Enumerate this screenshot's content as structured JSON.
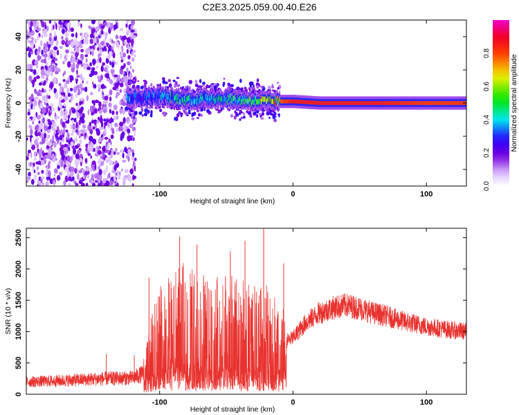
{
  "title": "C2E3.2025.059.00.40.E26",
  "chart_data": [
    {
      "type": "heatmap",
      "xlabel": "Height of straight line (km)",
      "ylabel": "Frequency (Hz)",
      "xlim": [
        -200,
        130
      ],
      "ylim": [
        -50,
        50
      ],
      "xticks": [
        -100,
        0,
        100
      ],
      "yticks": [
        -40,
        -20,
        0,
        20,
        40
      ],
      "colorbar": {
        "label": "Normalized spectral amplitude",
        "range": [
          0,
          1
        ],
        "ticks": [
          "0.0",
          "0.2",
          "0.4",
          "0.6",
          "0.8"
        ],
        "colormap": "rainbow (white→violet→blue→cyan→green→yellow→red→magenta)"
      },
      "ridge": {
        "description": "Spectral ridge near 0 Hz",
        "points": [
          {
            "x": -140,
            "y": 5,
            "amp": 0.45
          },
          {
            "x": -115,
            "y": 3,
            "amp": 0.3
          },
          {
            "x": -100,
            "y": 4,
            "amp": 0.4
          },
          {
            "x": -80,
            "y": 2,
            "amp": 0.45
          },
          {
            "x": -60,
            "y": 3,
            "amp": 0.45
          },
          {
            "x": -40,
            "y": 2,
            "amp": 0.5
          },
          {
            "x": -20,
            "y": 1,
            "amp": 0.7
          },
          {
            "x": 0,
            "y": 1,
            "amp": 0.85
          },
          {
            "x": 20,
            "y": 0,
            "amp": 0.85
          },
          {
            "x": 60,
            "y": 0,
            "amp": 0.85
          },
          {
            "x": 100,
            "y": 0,
            "amp": 0.8
          },
          {
            "x": 130,
            "y": 0,
            "amp": 0.8
          }
        ],
        "noise_region_x": [
          -200,
          -118
        ]
      }
    },
    {
      "type": "line",
      "xlabel": "Height of straight line (km)",
      "ylabel": "SNR (10 * v/v)",
      "xlim": [
        -200,
        130
      ],
      "ylim": [
        0,
        2650
      ],
      "xticks": [
        -100,
        0,
        100
      ],
      "yticks": [
        0,
        500,
        1000,
        1500,
        2000,
        2500
      ],
      "color": "#e8322e",
      "series": [
        {
          "x": [
            -200,
            -180,
            -160,
            -140,
            -120,
            -112,
            -105,
            -100,
            -90,
            -80,
            -70,
            -60,
            -50,
            -40,
            -30,
            -20,
            -10,
            0,
            10,
            20,
            30,
            40,
            50,
            60,
            70,
            80,
            90,
            100,
            110,
            120,
            130
          ],
          "values": [
            200,
            210,
            230,
            250,
            260,
            330,
            700,
            900,
            1000,
            1100,
            1000,
            950,
            1000,
            950,
            900,
            950,
            800,
            900,
            1150,
            1300,
            1380,
            1420,
            1370,
            1300,
            1250,
            1180,
            1130,
            1080,
            1050,
            1020,
            1000
          ],
          "peaks": [
            {
              "x": -108,
              "y": 1860
            },
            {
              "x": -85,
              "y": 2520
            },
            {
              "x": -72,
              "y": 2390
            },
            {
              "x": -47,
              "y": 2280
            },
            {
              "x": -36,
              "y": 2450
            },
            {
              "x": -22,
              "y": 2640
            },
            {
              "x": -7,
              "y": 2090
            }
          ]
        }
      ]
    }
  ]
}
